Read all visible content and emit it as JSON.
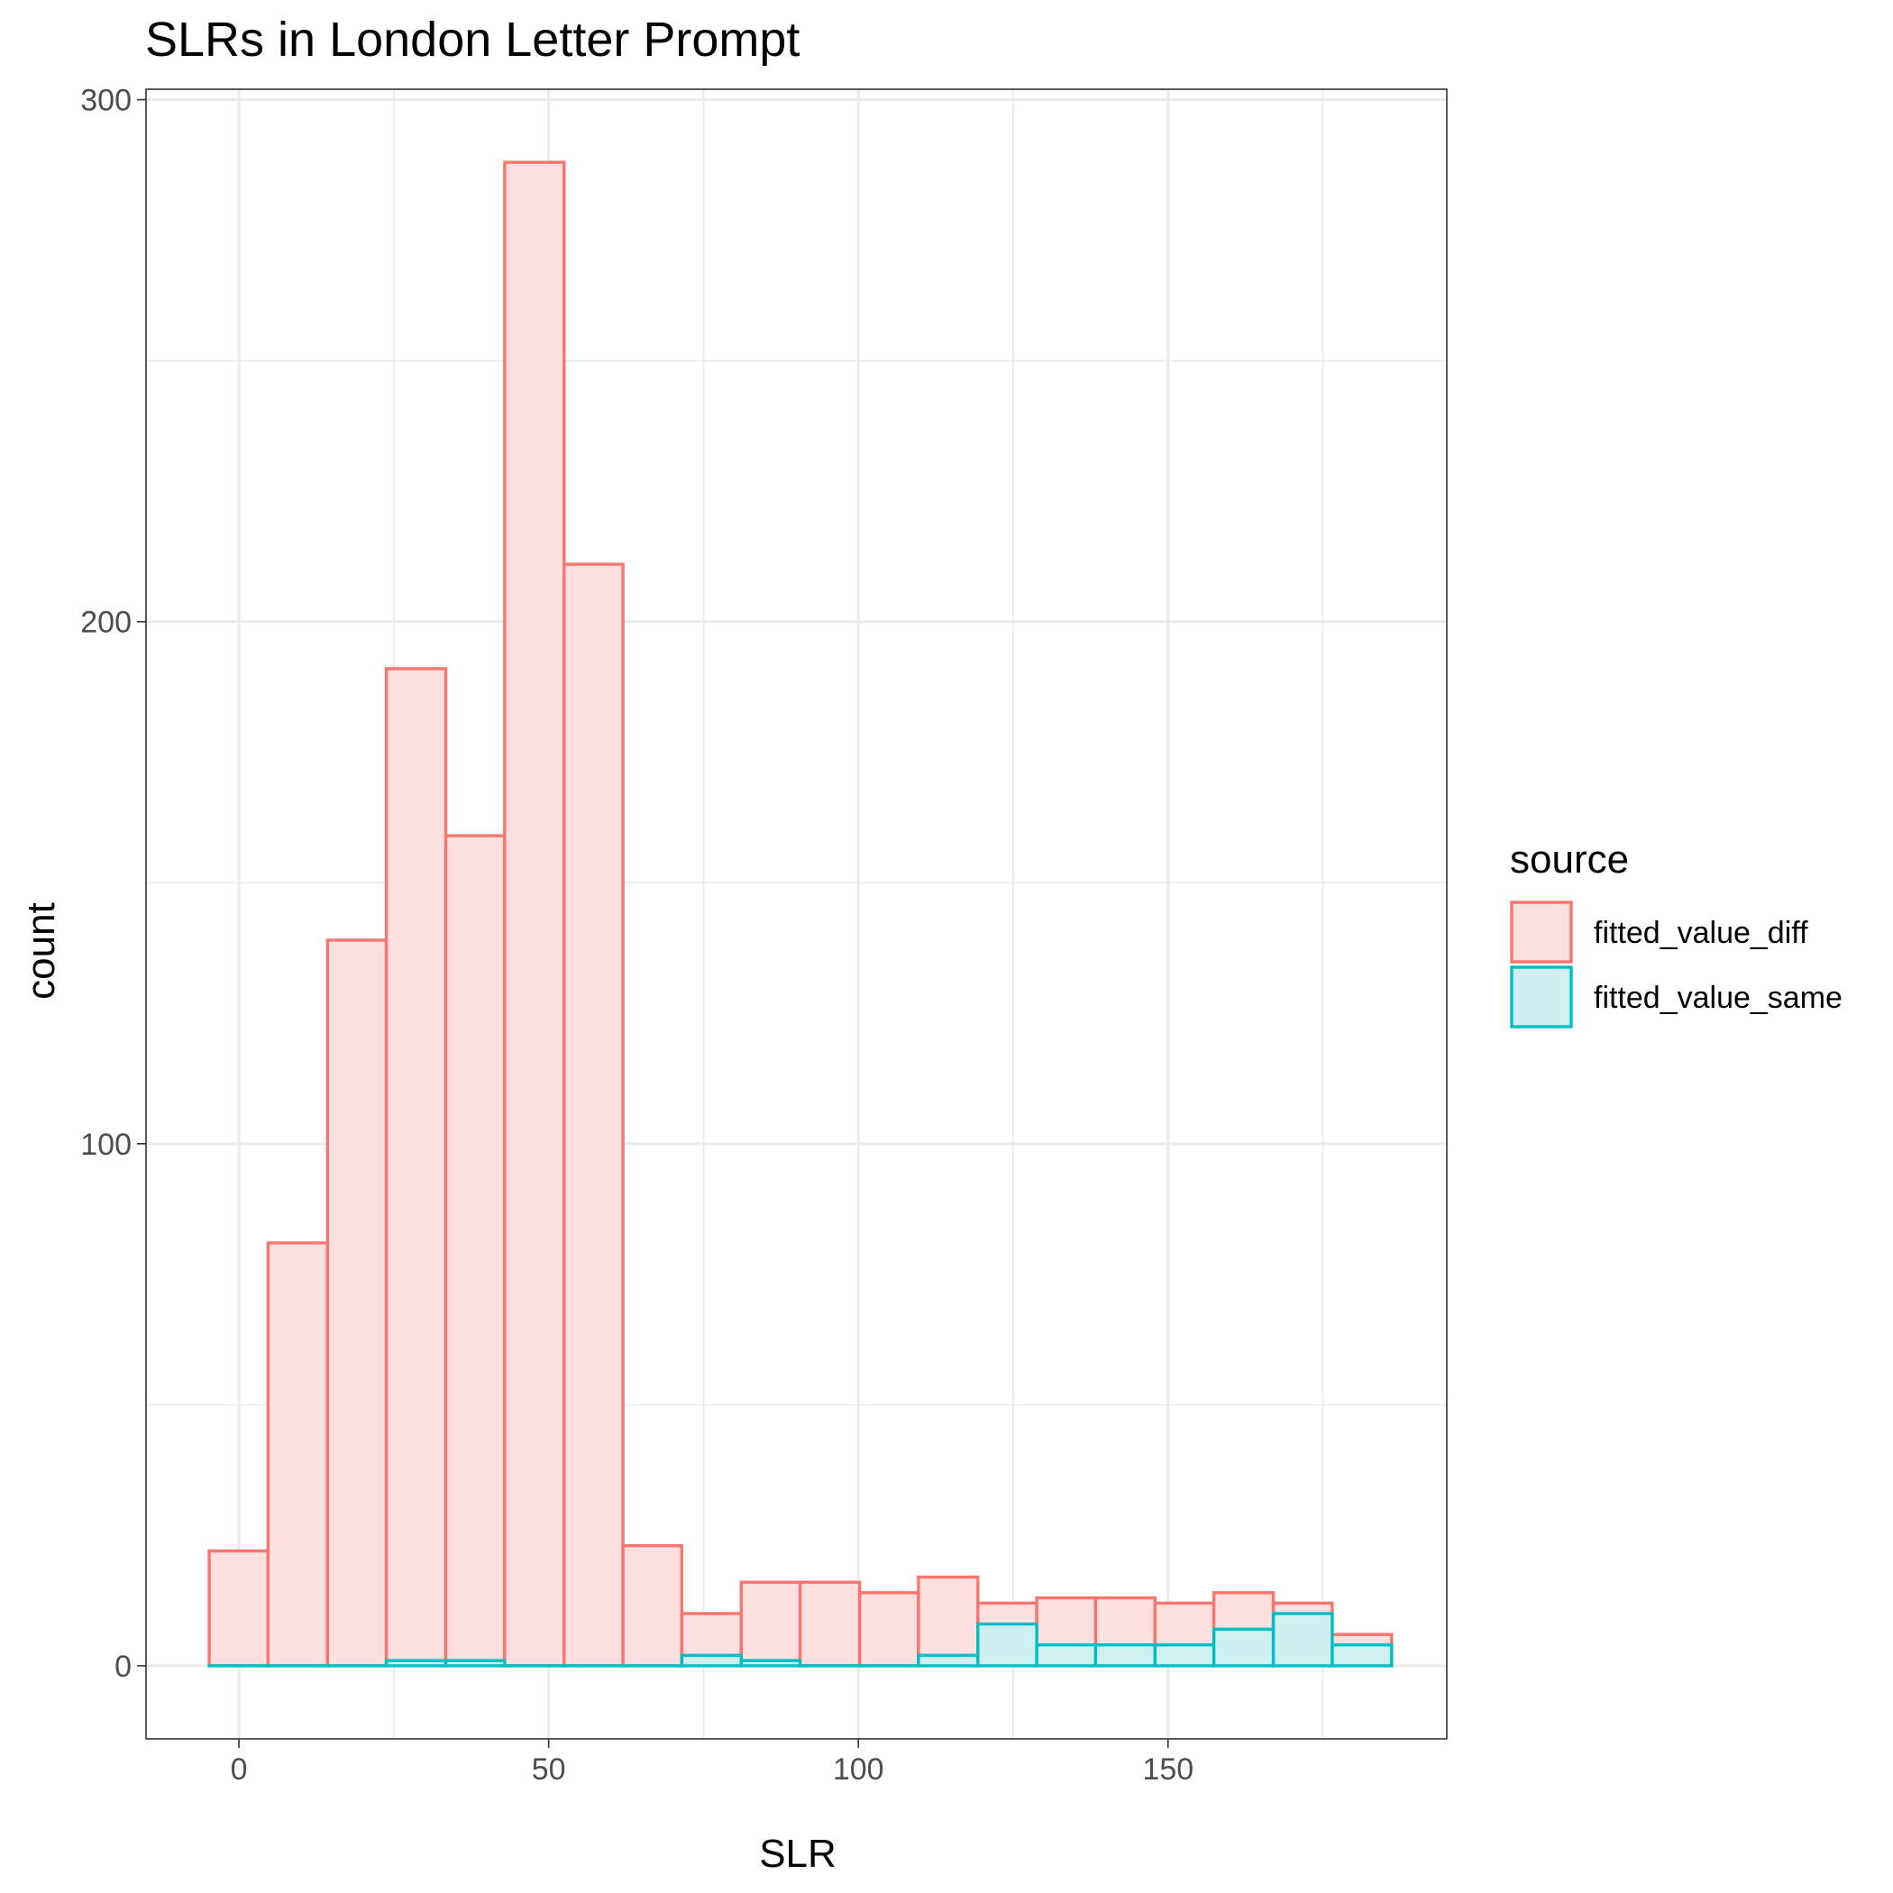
{
  "chart_data": {
    "type": "bar",
    "title": "SLRs in London Letter Prompt",
    "xlabel": "SLR",
    "ylabel": "count",
    "xlim": [
      -15,
      195
    ],
    "ylim": [
      -14,
      302
    ],
    "xticks": [
      0,
      50,
      100,
      150
    ],
    "yticks": [
      0,
      100,
      200,
      300
    ],
    "y_minor_gridlines": [
      50,
      150,
      250
    ],
    "x_minor_gridlines": [
      25,
      75,
      125,
      175
    ],
    "grid": true,
    "bin_edges": [
      -4.8,
      4.7,
      14.3,
      23.8,
      33.4,
      42.9,
      52.5,
      62.0,
      71.5,
      81.1,
      90.6,
      100.2,
      109.7,
      119.3,
      128.8,
      138.3,
      147.9,
      157.4,
      167.0,
      176.5,
      186.1
    ],
    "legend": {
      "title": "source",
      "position": "right"
    },
    "series": [
      {
        "name": "fitted_value_diff",
        "stroke": "#f8766d",
        "fill": "#fde0df",
        "values": [
          22,
          81,
          139,
          191,
          159,
          288,
          211,
          23,
          10,
          16,
          16,
          14,
          17,
          12,
          13,
          13,
          12,
          14,
          12,
          6
        ]
      },
      {
        "name": "fitted_value_same",
        "stroke": "#00bfc4",
        "fill": "#cff0f1",
        "values": [
          0,
          0,
          0,
          1,
          1,
          0,
          0,
          0,
          2,
          1,
          0,
          0,
          2,
          8,
          4,
          4,
          4,
          7,
          10,
          4
        ]
      }
    ]
  }
}
